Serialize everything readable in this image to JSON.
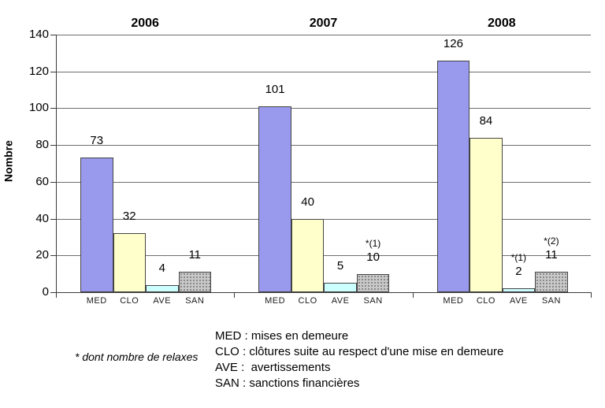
{
  "chart_data": {
    "type": "bar",
    "title": "",
    "ylabel": "Nombre",
    "ylim": [
      0,
      140
    ],
    "ytick_step": 20,
    "yticks": [
      0,
      20,
      40,
      60,
      80,
      100,
      120,
      140
    ],
    "grid": true,
    "legend_position": "bottom",
    "categories": [
      "MED",
      "CLO",
      "AVE",
      "SAN"
    ],
    "groups": [
      {
        "label": "2006",
        "values": [
          73,
          32,
          4,
          11
        ],
        "notes": [
          "",
          "",
          "",
          ""
        ]
      },
      {
        "label": "2007",
        "values": [
          101,
          40,
          5,
          10
        ],
        "notes": [
          "",
          "",
          "",
          "*(1)"
        ]
      },
      {
        "label": "2008",
        "values": [
          126,
          84,
          2,
          11
        ],
        "notes": [
          "",
          "",
          "*(1)",
          "*(2)"
        ]
      }
    ],
    "series_colors": {
      "MED": "#9999EE",
      "CLO": "#FFFFCC",
      "AVE": "#CCFFFF",
      "SAN": "#C9C9C9"
    },
    "san_fill_style": "gray-stipple-pattern"
  },
  "legend": {
    "items": [
      "MED : mises en demeure",
      "CLO : clôtures suite au respect d'une mise en demeure",
      "AVE :  avertissements",
      "SAN : sanctions financières"
    ]
  },
  "footnote": "* dont nombre de relaxes"
}
